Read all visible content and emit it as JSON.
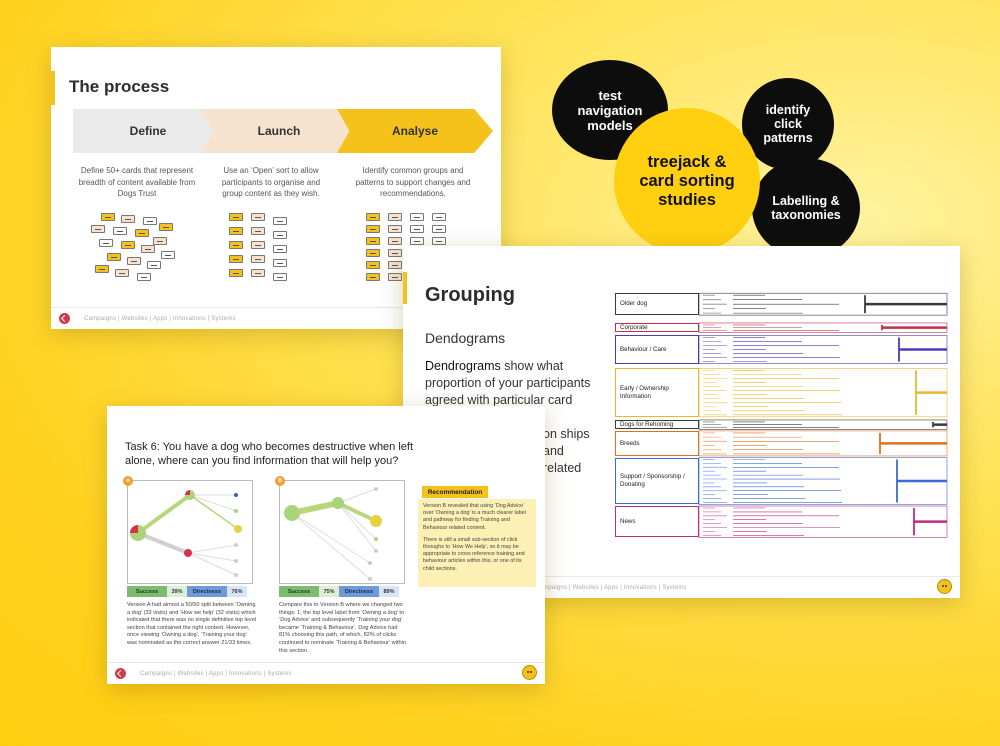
{
  "process_slide": {
    "title": "The process",
    "steps": [
      {
        "label": "Define",
        "desc": "Define 50+ cards that represent breadth of content available from Dogs Trust",
        "color": "#eaeaea"
      },
      {
        "label": "Launch",
        "desc": "Use an ‘Open’ sort to allow participants to organise and group content as they wish.",
        "color": "#f7e1cf"
      },
      {
        "label": "Analyse",
        "desc": "Identify common groups and patterns to support changes and recommendations.",
        "color": "#f4c21a"
      }
    ],
    "footer": "Campaigns  |  Websites  |  Apps  |  Innovations  |  Systems"
  },
  "circles": {
    "test_nav": "test navigation models",
    "click": "identify click patterns",
    "center": "treejack & card sorting studies",
    "labelling": "Labelling & taxonomies"
  },
  "grouping_slide": {
    "title": "Grouping",
    "subtitle": "Dendograms",
    "body_strong": "Dendrograms",
    "body_rest": " show what proportion of your participants agreed with particular card",
    "body_tail": "on ships and related",
    "footer": "Campaigns  |  Websites  |  Apps  |  Innovations  |  Systems",
    "groups": [
      {
        "label": "Older dog",
        "color": "#3a3a3a"
      },
      {
        "label": "Corporate",
        "color": "#c0304a"
      },
      {
        "label": "Behaviour / Care",
        "color": "#4a3ab8"
      },
      {
        "label": "Early / Ownership Information",
        "color": "#e8b830"
      },
      {
        "label": "Dogs for Rehoming",
        "color": "#3a3a3a"
      },
      {
        "label": "Breeds",
        "color": "#e07020"
      },
      {
        "label": "Support / Sponsorship / Donating",
        "color": "#3a6ad8"
      },
      {
        "label": "News",
        "color": "#c02a80"
      }
    ]
  },
  "task_slide": {
    "task_prefix": "Task 6:",
    "task_text": " You have a dog who becomes destructive when left alone, where can you find information that will help you?",
    "version_a": {
      "badge": "A",
      "success_label": "Success",
      "success_value": "39%",
      "directness_label": "Directness",
      "directness_value": "76%",
      "desc": "Version A had almost a 50/50 split between ‘Owning a dog’ (33 visits) and ‘How we help’ (32 visits) which indicated that there was no single definitive top level section that contained the right content. However, once viewing ‘Owning a dog’, ‘Training your dog’ was nominated as the correct answer 21/33 times."
    },
    "version_b": {
      "badge": "B",
      "success_label": "Success",
      "success_value": "75%",
      "directness_label": "Directness",
      "directness_value": "89%",
      "desc": "Compare this to Version B where we changed two things: 1; the top level label from ‘Owning a dog’ to ‘Dog Advice’ and subsequently ‘Training your dog’ became ‘Training & Behaviour’. Dog Advice had 81% choosing this path, of which, 82% of clicks continued to nominate ‘Training & Behaviour’ within this section."
    },
    "recommendation": {
      "title": "Recommendation",
      "p1": "Version B revealed that using ‘Dog Advice’ over ‘Owning a dog’ is a much clearer label and pathway for finding Training and Behaviour related content.",
      "p2": "There is still a small sub-section of click throughs to ‘How We Help’, so it may be appropriate to cross reference training and behaviour articles within this, or one of its child sections."
    },
    "footer": "Campaigns  |  Websites  |  Apps  |  Innovations  |  Systems"
  }
}
